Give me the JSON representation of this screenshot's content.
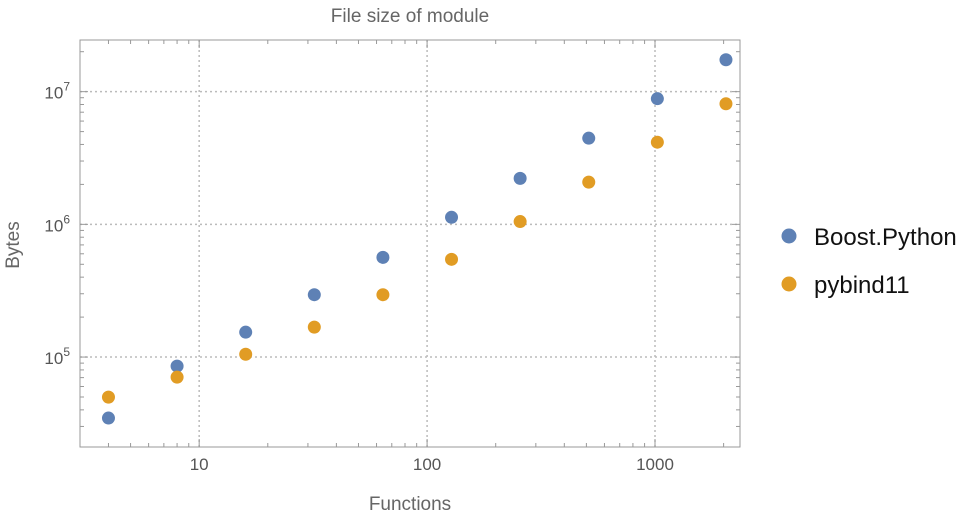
{
  "chart_data": {
    "type": "scatter",
    "title": "File size of module",
    "xlabel": "Functions",
    "ylabel": "Bytes",
    "x_scale": "log",
    "y_scale": "log",
    "xlim": [
      3.0,
      2360
    ],
    "ylim": [
      21000,
      24500000
    ],
    "grid": true,
    "legend_position": "right",
    "x_ticks": [
      {
        "value": 10,
        "label": "10"
      },
      {
        "value": 100,
        "label": "100"
      },
      {
        "value": 1000,
        "label": "1000"
      }
    ],
    "y_ticks": [
      {
        "value": 100000,
        "base": "10",
        "exp": "5"
      },
      {
        "value": 1000000,
        "base": "10",
        "exp": "6"
      },
      {
        "value": 10000000,
        "base": "10",
        "exp": "7"
      }
    ],
    "x": [
      4,
      8,
      16,
      32,
      64,
      128,
      256,
      512,
      1024,
      2048
    ],
    "series": [
      {
        "name": "Boost.Python",
        "color": "#5e81b5",
        "values": [
          34700,
          85500,
          154000,
          295000,
          564000,
          1130000,
          2220000,
          4460000,
          8850000,
          17400000
        ]
      },
      {
        "name": "pybind11",
        "color": "#e19c24",
        "values": [
          49900,
          70600,
          105000,
          168000,
          295000,
          545000,
          1050000,
          2080000,
          4160000,
          8100000
        ]
      }
    ]
  }
}
